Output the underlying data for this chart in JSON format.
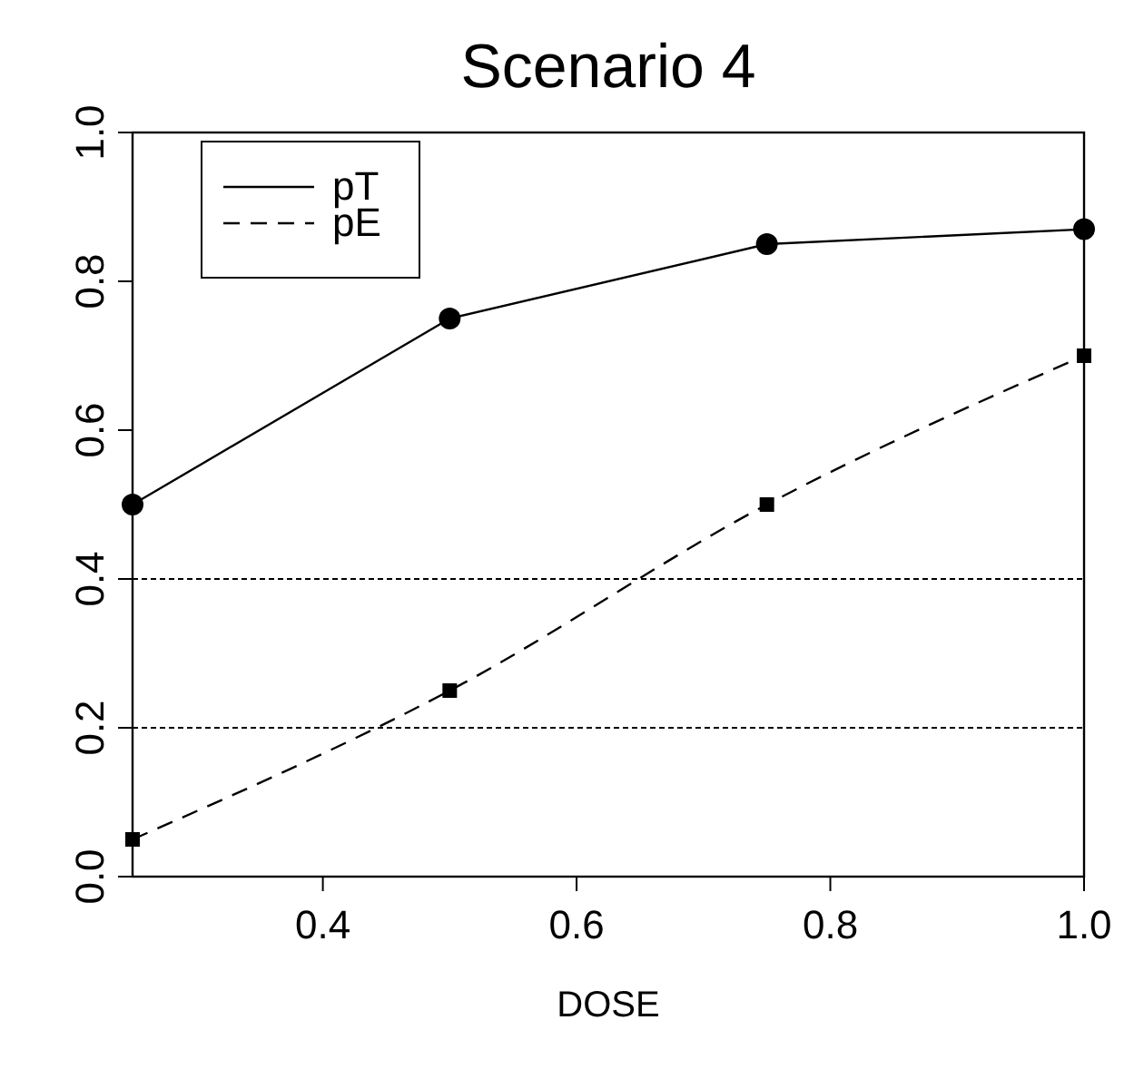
{
  "chart_data": {
    "type": "line",
    "title": "Scenario 4",
    "xlabel": "DOSE",
    "x": [
      0.25,
      0.5,
      0.75,
      1.0
    ],
    "series": [
      {
        "name": "pT",
        "color": "#000000",
        "values": [
          0.5,
          0.75,
          0.85,
          0.87
        ],
        "marker": "circle",
        "line_style": "solid"
      },
      {
        "name": "pE",
        "color": "#000000",
        "values": [
          0.05,
          0.25,
          0.5,
          0.7
        ],
        "marker": "square",
        "line_style": "dashed"
      }
    ],
    "xlim": [
      0.25,
      1.0
    ],
    "xticks": [
      0.4,
      0.6,
      0.8,
      {
        "value": 1,
        "label": "1.0"
      }
    ],
    "ylim": [
      0,
      1
    ],
    "yticks": [
      {
        "value": 0,
        "label": "0.0"
      },
      0.2,
      0.4,
      0.6,
      0.8,
      {
        "value": 1,
        "label": "1.0"
      }
    ],
    "ref_lines": [
      {
        "axis": "y",
        "value": 0.4,
        "color": "#000000",
        "line_style": "dashed"
      },
      {
        "axis": "y",
        "value": 0.2,
        "color": "#000000",
        "line_style": "dashed"
      }
    ],
    "legend": "top left",
    "grid": false
  }
}
